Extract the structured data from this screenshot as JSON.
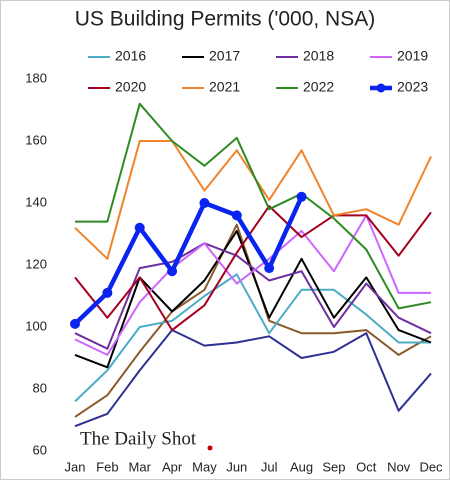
{
  "chart_data": {
    "type": "line",
    "title": "US Building Permits ('000, NSA)",
    "watermark": "The Daily Shot",
    "categories": [
      "Jan",
      "Feb",
      "Mar",
      "Apr",
      "May",
      "Jun",
      "Jul",
      "Aug",
      "Sep",
      "Oct",
      "Nov",
      "Dec"
    ],
    "ylim": [
      60,
      180
    ],
    "yticks": [
      60,
      80,
      100,
      120,
      140,
      160,
      180
    ],
    "grid": false,
    "series": [
      {
        "color": "#2e3192",
        "values": [
          68,
          72,
          86,
          99,
          94,
          95,
          97,
          90,
          92,
          98,
          73,
          85
        ]
      },
      {
        "color": "#8b5a2b",
        "values": [
          71,
          78,
          92,
          105,
          112,
          133,
          102,
          98,
          98,
          99,
          91,
          97
        ]
      },
      {
        "name": "2016",
        "color": "#4bacc6",
        "values": [
          76,
          86,
          100,
          102,
          110,
          117,
          98,
          112,
          112,
          104,
          95,
          95
        ]
      },
      {
        "name": "2017",
        "color": "#000000",
        "values": [
          91,
          87,
          116,
          105,
          115,
          131,
          103,
          122,
          103,
          116,
          99,
          95
        ]
      },
      {
        "name": "2018",
        "color": "#7030a0",
        "values": [
          98,
          93,
          119,
          121,
          127,
          123,
          115,
          118,
          100,
          114,
          103,
          98
        ]
      },
      {
        "name": "2019",
        "color": "#cc66ff",
        "values": [
          96,
          91,
          108,
          119,
          127,
          114,
          122,
          131,
          118,
          136,
          111,
          111
        ]
      },
      {
        "name": "2020",
        "color": "#a50021",
        "values": [
          116,
          103,
          116,
          99,
          107,
          124,
          139,
          129,
          136,
          136,
          123,
          137
        ]
      },
      {
        "name": "2021",
        "color": "#f0842c",
        "values": [
          132,
          122,
          160,
          160,
          144,
          157,
          141,
          157,
          136,
          138,
          133,
          155
        ]
      },
      {
        "name": "2022",
        "color": "#2e8b22",
        "values": [
          134,
          134,
          172,
          160,
          152,
          161,
          138,
          143,
          135,
          125,
          106,
          108
        ]
      },
      {
        "name": "2023",
        "color": "#0a24f0",
        "markers": true,
        "values": [
          101,
          111,
          132,
          118,
          140,
          136,
          119,
          142,
          null,
          null,
          null,
          null
        ]
      }
    ]
  }
}
